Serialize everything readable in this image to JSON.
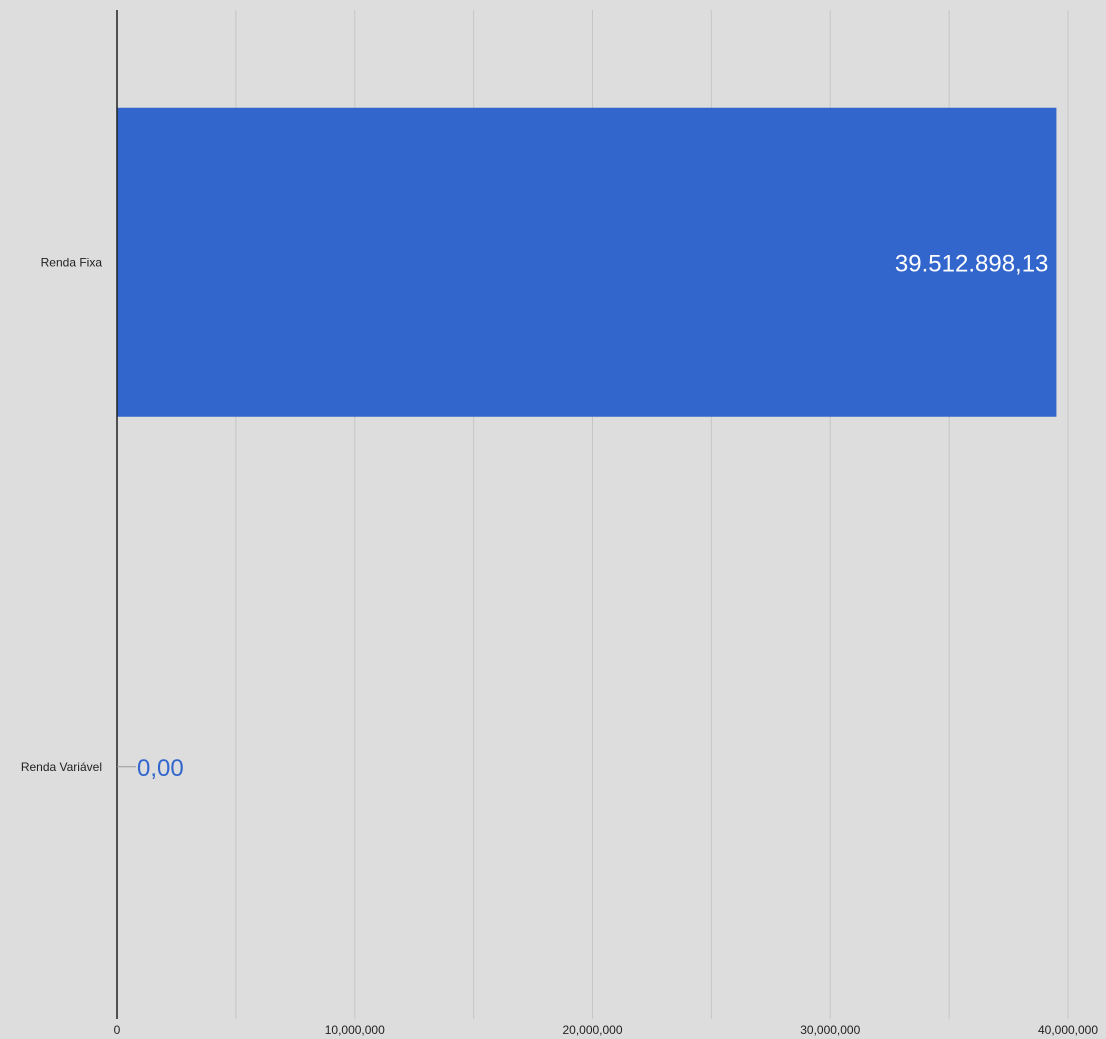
{
  "chart_data": {
    "type": "bar",
    "orientation": "horizontal",
    "title": "",
    "xlabel": "",
    "ylabel": "",
    "categories": [
      "Renda Fixa",
      "Renda Variável"
    ],
    "values": [
      39512898.13,
      0
    ],
    "data_labels": [
      "39.512.898,13",
      "0,00"
    ],
    "xlim": [
      0,
      40000000
    ],
    "major_ticks": [
      0,
      10000000,
      20000000,
      30000000,
      40000000
    ],
    "tick_labels": [
      "0",
      "10,000,000",
      "20,000,000",
      "30,000,000",
      "40,000,000"
    ],
    "minor_gridlines": [
      5000000,
      15000000,
      25000000,
      35000000
    ],
    "grid": true,
    "legend": "none",
    "colors": {
      "bar": "#3366cc",
      "background": "#dddddd",
      "gridline": "#c6c6c6",
      "axis": "#222222",
      "inside_label": "#ffffff",
      "outside_label": "#3366cc",
      "leader_line": "#999999"
    }
  }
}
